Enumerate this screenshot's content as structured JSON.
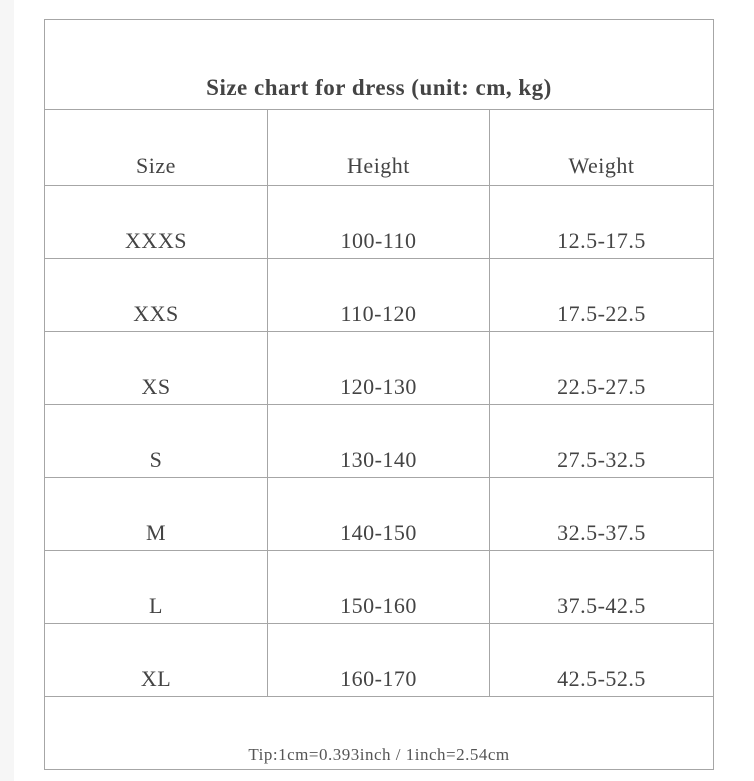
{
  "title": "Size chart for dress (unit: cm, kg)",
  "columns": [
    "Size",
    "Height",
    "Weight"
  ],
  "rows": [
    [
      "XXXS",
      "100-110",
      "12.5-17.5"
    ],
    [
      "XXS",
      "110-120",
      "17.5-22.5"
    ],
    [
      "XS",
      "120-130",
      "22.5-27.5"
    ],
    [
      "S",
      "130-140",
      "27.5-32.5"
    ],
    [
      "M",
      "140-150",
      "32.5-37.5"
    ],
    [
      "L",
      "150-160",
      "37.5-42.5"
    ],
    [
      "XL",
      "160-170",
      "42.5-52.5"
    ]
  ],
  "tip": "Tip:1cm=0.393inch / 1inch=2.54cm"
}
